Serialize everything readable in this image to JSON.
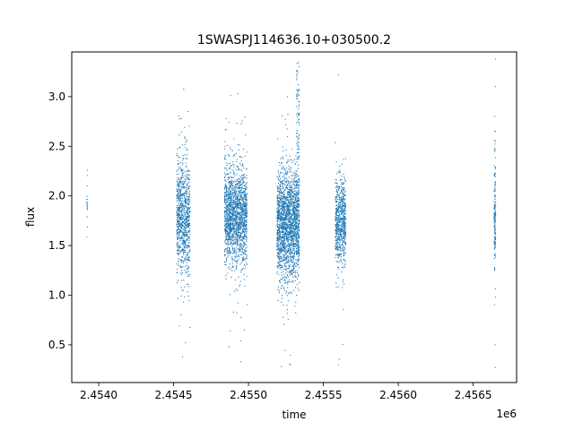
{
  "chart_data": {
    "type": "scatter",
    "title": "1SWASPJ114636.10+030500.2",
    "xlabel": "time",
    "ylabel": "flux",
    "x_offset_label": "1e6",
    "xlim": [
      2453820,
      2456790
    ],
    "ylim": [
      0.12,
      3.45
    ],
    "x_ticks": [
      2.454,
      2.4545,
      2.455,
      2.4555,
      2.456,
      2.4565
    ],
    "x_tick_labels": [
      "2.4540",
      "2.4545",
      "2.4550",
      "2.4555",
      "2.4560",
      "2.4565"
    ],
    "y_ticks": [
      0.5,
      1.0,
      1.5,
      2.0,
      2.5,
      3.0
    ],
    "y_tick_labels": [
      "0.5",
      "1.0",
      "1.5",
      "2.0",
      "2.5",
      "3.0"
    ],
    "grid": false,
    "legend": "none",
    "marker_color": "#1f77b4",
    "observing_seasons": [
      {
        "x_start": 2453920,
        "x_end": 2453925,
        "flux_center": 2.0,
        "flux_spread": 0.15,
        "n_points": 18
      },
      {
        "x_start": 2454520,
        "x_end": 2454610,
        "flux_center": 1.8,
        "flux_spread": 0.28,
        "n_points": 900
      },
      {
        "x_start": 2454840,
        "x_end": 2454990,
        "flux_center": 1.8,
        "flux_spread": 0.25,
        "n_points": 1700
      },
      {
        "x_start": 2455190,
        "x_end": 2455340,
        "flux_center": 1.72,
        "flux_spread": 0.27,
        "n_points": 2100
      },
      {
        "x_start": 2455580,
        "x_end": 2455650,
        "flux_center": 1.75,
        "flux_spread": 0.22,
        "n_points": 700
      },
      {
        "x_start": 2456640,
        "x_end": 2456650,
        "flux_center": 1.8,
        "flux_spread": 0.28,
        "n_points": 160
      }
    ],
    "flare_region": {
      "x_start": 2455320,
      "x_end": 2455340,
      "flux_min": 2.0,
      "flux_max": 3.35,
      "n_points": 90
    },
    "outliers": [
      {
        "x": 2454560,
        "y": 0.38
      },
      {
        "x": 2454580,
        "y": 0.52
      },
      {
        "x": 2454595,
        "y": 2.85
      },
      {
        "x": 2454870,
        "y": 0.48
      },
      {
        "x": 2454930,
        "y": 3.03
      },
      {
        "x": 2454950,
        "y": 0.33
      },
      {
        "x": 2454880,
        "y": 3.01
      },
      {
        "x": 2455220,
        "y": 0.28
      },
      {
        "x": 2455260,
        "y": 3.0
      },
      {
        "x": 2455280,
        "y": 0.3
      },
      {
        "x": 2455600,
        "y": 3.22
      },
      {
        "x": 2455600,
        "y": 0.3
      },
      {
        "x": 2455620,
        "y": 2.2
      },
      {
        "x": 2456648,
        "y": 3.1
      },
      {
        "x": 2456648,
        "y": 0.27
      },
      {
        "x": 2456645,
        "y": 2.8
      },
      {
        "x": 2456646,
        "y": 0.5
      }
    ]
  }
}
